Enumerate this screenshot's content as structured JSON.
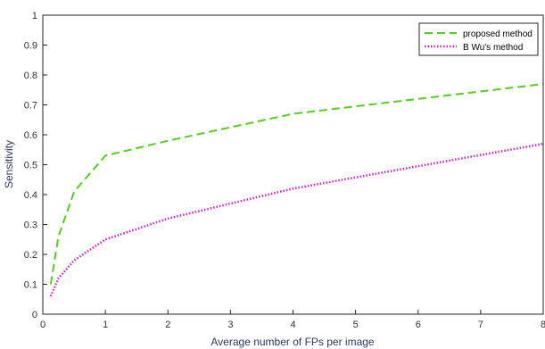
{
  "chart_data": {
    "type": "line",
    "title": "",
    "xlabel": "Average number of FPs per image",
    "ylabel": "Sensitivity",
    "xlim": [
      0,
      8
    ],
    "ylim": [
      0,
      1
    ],
    "x_ticks": [
      "0",
      "1",
      "2",
      "3",
      "4",
      "5",
      "6",
      "7",
      "8"
    ],
    "y_ticks": [
      "0",
      "0.1",
      "0.2",
      "0.3",
      "0.4",
      "0.5",
      "0.6",
      "0.7",
      "0.8",
      "0.9",
      "1"
    ],
    "grid": false,
    "legend_position": "top-right",
    "series": [
      {
        "name": "proposed method",
        "color": "#55cc22",
        "style": "dashed",
        "x": [
          0.125,
          0.25,
          0.5,
          1,
          2,
          4,
          8
        ],
        "y": [
          0.1,
          0.26,
          0.41,
          0.53,
          0.58,
          0.67,
          0.77
        ]
      },
      {
        "name": "B Wu's method",
        "color": "#cc22cc",
        "style": "dotted",
        "x": [
          0.125,
          0.25,
          0.5,
          1,
          2,
          4,
          8
        ],
        "y": [
          0.06,
          0.12,
          0.18,
          0.25,
          0.32,
          0.42,
          0.57
        ]
      }
    ]
  }
}
